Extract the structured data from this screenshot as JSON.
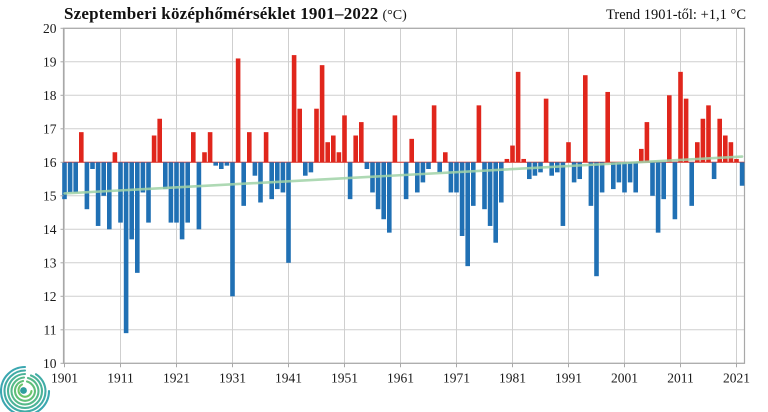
{
  "header": {
    "title_main": "Szeptemberi középhőmérséklet 1901–2022",
    "title_unit": "(°C)",
    "trend_label": "Trend 1901-től: +1,1 °C"
  },
  "logo": {
    "name": "meteorological-service-spiral-logo"
  },
  "chart_data": {
    "type": "bar",
    "title": "Szeptemberi középhőmérséklet 1901–2022 (°C)",
    "subtitle": "Trend 1901-től: +1,1 °C",
    "xlabel": "",
    "ylabel": "",
    "baseline": 16.0,
    "ylim": [
      10,
      20
    ],
    "yticks": [
      10,
      11,
      12,
      13,
      14,
      15,
      16,
      17,
      18,
      19,
      20
    ],
    "xticks": [
      1901,
      1911,
      1921,
      1931,
      1941,
      1951,
      1961,
      1971,
      1981,
      1991,
      2001,
      2011,
      2021
    ],
    "grid": true,
    "legend_position": "none",
    "years": [
      1901,
      1902,
      1903,
      1904,
      1905,
      1906,
      1907,
      1908,
      1909,
      1910,
      1911,
      1912,
      1913,
      1914,
      1915,
      1916,
      1917,
      1918,
      1919,
      1920,
      1921,
      1922,
      1923,
      1924,
      1925,
      1926,
      1927,
      1928,
      1929,
      1930,
      1931,
      1932,
      1933,
      1934,
      1935,
      1936,
      1937,
      1938,
      1939,
      1940,
      1941,
      1942,
      1943,
      1944,
      1945,
      1946,
      1947,
      1948,
      1949,
      1950,
      1951,
      1952,
      1953,
      1954,
      1955,
      1956,
      1957,
      1958,
      1959,
      1960,
      1961,
      1962,
      1963,
      1964,
      1965,
      1966,
      1967,
      1968,
      1969,
      1970,
      1971,
      1972,
      1973,
      1974,
      1975,
      1976,
      1977,
      1978,
      1979,
      1980,
      1981,
      1982,
      1983,
      1984,
      1985,
      1986,
      1987,
      1988,
      1989,
      1990,
      1991,
      1992,
      1993,
      1994,
      1995,
      1996,
      1997,
      1998,
      1999,
      2000,
      2001,
      2002,
      2003,
      2004,
      2005,
      2006,
      2007,
      2008,
      2009,
      2010,
      2011,
      2012,
      2013,
      2014,
      2015,
      2016,
      2017,
      2018,
      2019,
      2020,
      2021,
      2022
    ],
    "values": [
      14.9,
      15.1,
      15.1,
      16.9,
      14.6,
      15.8,
      14.1,
      15.0,
      14.0,
      16.3,
      14.2,
      10.9,
      13.7,
      12.7,
      15.1,
      14.2,
      16.8,
      17.3,
      15.2,
      14.2,
      14.2,
      13.7,
      14.2,
      16.9,
      14.0,
      16.3,
      16.9,
      15.9,
      15.8,
      15.9,
      12.0,
      19.1,
      14.7,
      16.9,
      15.6,
      14.8,
      16.9,
      14.9,
      15.2,
      15.1,
      13.0,
      19.2,
      17.6,
      15.6,
      15.7,
      17.6,
      18.9,
      16.6,
      16.8,
      16.3,
      17.4,
      14.9,
      16.8,
      17.2,
      15.8,
      15.1,
      14.6,
      14.3,
      13.9,
      17.4,
      16.0,
      14.9,
      16.7,
      15.1,
      15.4,
      15.8,
      17.7,
      15.7,
      16.3,
      15.1,
      15.1,
      13.8,
      12.9,
      14.7,
      17.7,
      14.6,
      14.1,
      13.6,
      14.8,
      16.1,
      16.5,
      18.7,
      16.1,
      15.5,
      15.6,
      15.7,
      17.9,
      15.6,
      15.7,
      14.1,
      16.6,
      15.4,
      15.5,
      18.6,
      14.7,
      12.6,
      15.1,
      18.1,
      15.2,
      15.4,
      15.1,
      15.4,
      15.1,
      16.4,
      17.2,
      15.0,
      13.9,
      14.9,
      18.0,
      14.3,
      18.7,
      17.9,
      14.7,
      16.6,
      17.3,
      17.7,
      15.5,
      17.3,
      16.8,
      16.6,
      16.1,
      15.3
    ],
    "trend_line": {
      "start_year": 1901,
      "end_year": 2022,
      "start_value": 15.07,
      "end_value": 16.17
    },
    "colors": {
      "above_baseline": "#e0261c",
      "below_baseline": "#2070b4",
      "baseline_line": "#e0261c",
      "trend": "#a0d3a8",
      "gridline": "#cfcfcf",
      "border": "#a8a8a8",
      "text": "#1a1a1a"
    }
  }
}
